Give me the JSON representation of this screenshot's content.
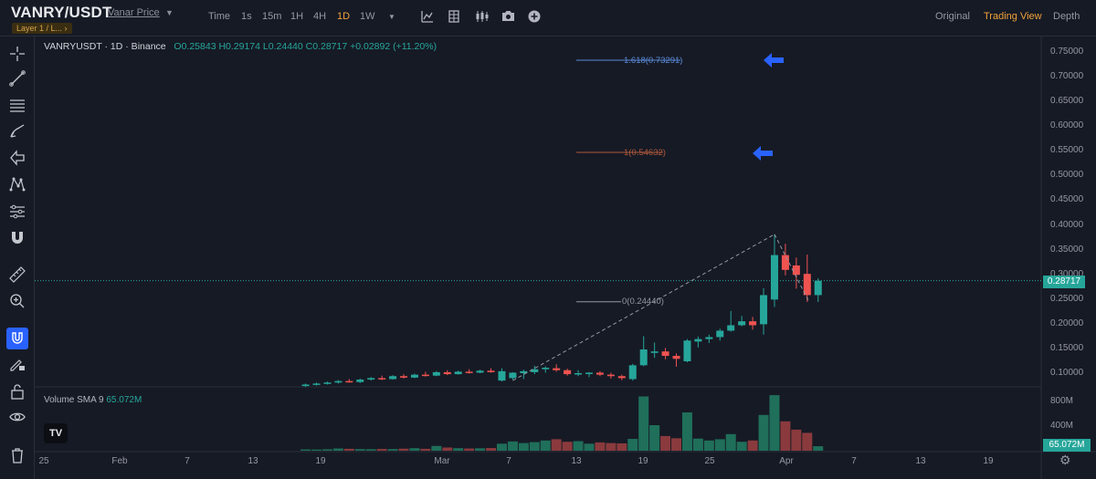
{
  "header": {
    "symbol": "VANRY/USDT",
    "symbol_name": "Vanar Price",
    "tag": "Layer 1 / L... ›",
    "timeframes": [
      "Time",
      "1s",
      "15m",
      "1H",
      "4H",
      "1D",
      "1W"
    ],
    "active_timeframe": "1D",
    "views": [
      "Original",
      "Trading View",
      "Depth"
    ],
    "active_view": "Trading View"
  },
  "legend": {
    "title": "VANRYUSDT · 1D · Binance",
    "open": "O0.25843",
    "high": "H0.29174",
    "low": "L0.24440",
    "close": "C0.28717",
    "change": "+0.02892 (+11.20%)"
  },
  "volume_legend": {
    "label": "Volume SMA 9",
    "value": "65.072M"
  },
  "price_scale": {
    "ticks": [
      "0.75000",
      "0.70000",
      "0.65000",
      "0.60000",
      "0.55000",
      "0.50000",
      "0.45000",
      "0.40000",
      "0.35000",
      "0.30000",
      "0.25000",
      "0.20000",
      "0.15000",
      "0.10000"
    ],
    "current_price": "0.28717"
  },
  "volume_scale": {
    "ticks": [
      "800M",
      "400M"
    ],
    "current_volume": "65.072M"
  },
  "time_axis": [
    "25",
    "Feb",
    "7",
    "13",
    "19",
    "Mar",
    "7",
    "13",
    "19",
    "25",
    "Apr",
    "7",
    "13",
    "19"
  ],
  "fibonacci": {
    "level_1618": "1.618(0.73291)",
    "level_1": "1(0.54632)",
    "level_0": "0(0.24440)"
  },
  "colors": {
    "up": "#26a69a",
    "down": "#ef5350",
    "fib_1618": "#5b8bd9",
    "fib_1": "#b0583a",
    "fib_0": "#9598a1",
    "arrow": "#2962ff",
    "accent": "#f0a23a"
  },
  "icons": [
    "crosshair-icon",
    "trendline-icon",
    "fib-icon",
    "brush-icon",
    "arrow-icon",
    "pattern-icon",
    "indicators-icon",
    "magnet-icon",
    "ruler-icon",
    "zoom-icon",
    "lock-magnet-icon",
    "edit-lock-icon",
    "lock-icon",
    "eye-icon",
    "trash-icon",
    "chart-type-icon",
    "bars-icon",
    "candles-icon",
    "camera-icon",
    "plus-circle-icon",
    "settings-icon"
  ],
  "chart_data": {
    "type": "candlestick",
    "x_labels": [
      "25",
      "Feb",
      "7",
      "13",
      "19",
      "Mar",
      "7",
      "13",
      "19",
      "25",
      "Apr",
      "7",
      "13",
      "19"
    ],
    "price_range": [
      0.08,
      0.77
    ],
    "volume_range": [
      0,
      900
    ],
    "volume_unit": "M",
    "candles": [
      {
        "o": 0.074,
        "h": 0.079,
        "l": 0.072,
        "c": 0.077,
        "v": 20
      },
      {
        "o": 0.077,
        "h": 0.081,
        "l": 0.075,
        "c": 0.079,
        "v": 18
      },
      {
        "o": 0.079,
        "h": 0.083,
        "l": 0.077,
        "c": 0.081,
        "v": 22
      },
      {
        "o": 0.081,
        "h": 0.086,
        "l": 0.079,
        "c": 0.084,
        "v": 35
      },
      {
        "o": 0.084,
        "h": 0.088,
        "l": 0.081,
        "c": 0.082,
        "v": 30
      },
      {
        "o": 0.082,
        "h": 0.089,
        "l": 0.08,
        "c": 0.087,
        "v": 25
      },
      {
        "o": 0.087,
        "h": 0.092,
        "l": 0.085,
        "c": 0.09,
        "v": 24
      },
      {
        "o": 0.09,
        "h": 0.095,
        "l": 0.086,
        "c": 0.088,
        "v": 28
      },
      {
        "o": 0.088,
        "h": 0.096,
        "l": 0.087,
        "c": 0.094,
        "v": 26
      },
      {
        "o": 0.094,
        "h": 0.098,
        "l": 0.089,
        "c": 0.091,
        "v": 32
      },
      {
        "o": 0.091,
        "h": 0.099,
        "l": 0.09,
        "c": 0.097,
        "v": 40
      },
      {
        "o": 0.097,
        "h": 0.103,
        "l": 0.093,
        "c": 0.095,
        "v": 30
      },
      {
        "o": 0.095,
        "h": 0.104,
        "l": 0.094,
        "c": 0.102,
        "v": 75
      },
      {
        "o": 0.102,
        "h": 0.106,
        "l": 0.096,
        "c": 0.098,
        "v": 50
      },
      {
        "o": 0.098,
        "h": 0.105,
        "l": 0.097,
        "c": 0.103,
        "v": 40
      },
      {
        "o": 0.103,
        "h": 0.108,
        "l": 0.099,
        "c": 0.101,
        "v": 35
      },
      {
        "o": 0.101,
        "h": 0.107,
        "l": 0.1,
        "c": 0.105,
        "v": 38
      },
      {
        "o": 0.105,
        "h": 0.11,
        "l": 0.101,
        "c": 0.102,
        "v": 42
      },
      {
        "o": 0.085,
        "h": 0.11,
        "l": 0.083,
        "c": 0.104,
        "v": 110
      },
      {
        "o": 0.09,
        "h": 0.102,
        "l": 0.087,
        "c": 0.101,
        "v": 145
      },
      {
        "o": 0.1,
        "h": 0.107,
        "l": 0.088,
        "c": 0.104,
        "v": 120
      },
      {
        "o": 0.102,
        "h": 0.115,
        "l": 0.098,
        "c": 0.108,
        "v": 135
      },
      {
        "o": 0.108,
        "h": 0.114,
        "l": 0.101,
        "c": 0.111,
        "v": 160
      },
      {
        "o": 0.11,
        "h": 0.118,
        "l": 0.103,
        "c": 0.106,
        "v": 180
      },
      {
        "o": 0.106,
        "h": 0.109,
        "l": 0.095,
        "c": 0.098,
        "v": 140
      },
      {
        "o": 0.098,
        "h": 0.106,
        "l": 0.094,
        "c": 0.1,
        "v": 150
      },
      {
        "o": 0.099,
        "h": 0.102,
        "l": 0.092,
        "c": 0.101,
        "v": 110
      },
      {
        "o": 0.101,
        "h": 0.104,
        "l": 0.094,
        "c": 0.097,
        "v": 130
      },
      {
        "o": 0.097,
        "h": 0.101,
        "l": 0.089,
        "c": 0.094,
        "v": 120
      },
      {
        "o": 0.094,
        "h": 0.097,
        "l": 0.086,
        "c": 0.09,
        "v": 115
      },
      {
        "o": 0.088,
        "h": 0.119,
        "l": 0.085,
        "c": 0.116,
        "v": 185
      },
      {
        "o": 0.116,
        "h": 0.175,
        "l": 0.114,
        "c": 0.148,
        "v": 850
      },
      {
        "o": 0.141,
        "h": 0.162,
        "l": 0.131,
        "c": 0.144,
        "v": 400
      },
      {
        "o": 0.144,
        "h": 0.151,
        "l": 0.128,
        "c": 0.135,
        "v": 230
      },
      {
        "o": 0.135,
        "h": 0.14,
        "l": 0.113,
        "c": 0.129,
        "v": 195
      },
      {
        "o": 0.124,
        "h": 0.169,
        "l": 0.122,
        "c": 0.166,
        "v": 600
      },
      {
        "o": 0.164,
        "h": 0.174,
        "l": 0.152,
        "c": 0.169,
        "v": 190
      },
      {
        "o": 0.169,
        "h": 0.178,
        "l": 0.161,
        "c": 0.173,
        "v": 160
      },
      {
        "o": 0.173,
        "h": 0.19,
        "l": 0.166,
        "c": 0.186,
        "v": 180
      },
      {
        "o": 0.186,
        "h": 0.226,
        "l": 0.184,
        "c": 0.197,
        "v": 260
      },
      {
        "o": 0.197,
        "h": 0.216,
        "l": 0.195,
        "c": 0.205,
        "v": 140
      },
      {
        "o": 0.205,
        "h": 0.214,
        "l": 0.188,
        "c": 0.197,
        "v": 160
      },
      {
        "o": 0.199,
        "h": 0.272,
        "l": 0.178,
        "c": 0.258,
        "v": 560
      },
      {
        "o": 0.249,
        "h": 0.381,
        "l": 0.234,
        "c": 0.339,
        "v": 870
      },
      {
        "o": 0.339,
        "h": 0.362,
        "l": 0.298,
        "c": 0.309,
        "v": 460
      },
      {
        "o": 0.318,
        "h": 0.334,
        "l": 0.271,
        "c": 0.299,
        "v": 330
      },
      {
        "o": 0.301,
        "h": 0.34,
        "l": 0.244,
        "c": 0.258,
        "v": 280
      },
      {
        "o": 0.258,
        "h": 0.292,
        "l": 0.244,
        "c": 0.287,
        "v": 70
      }
    ]
  }
}
